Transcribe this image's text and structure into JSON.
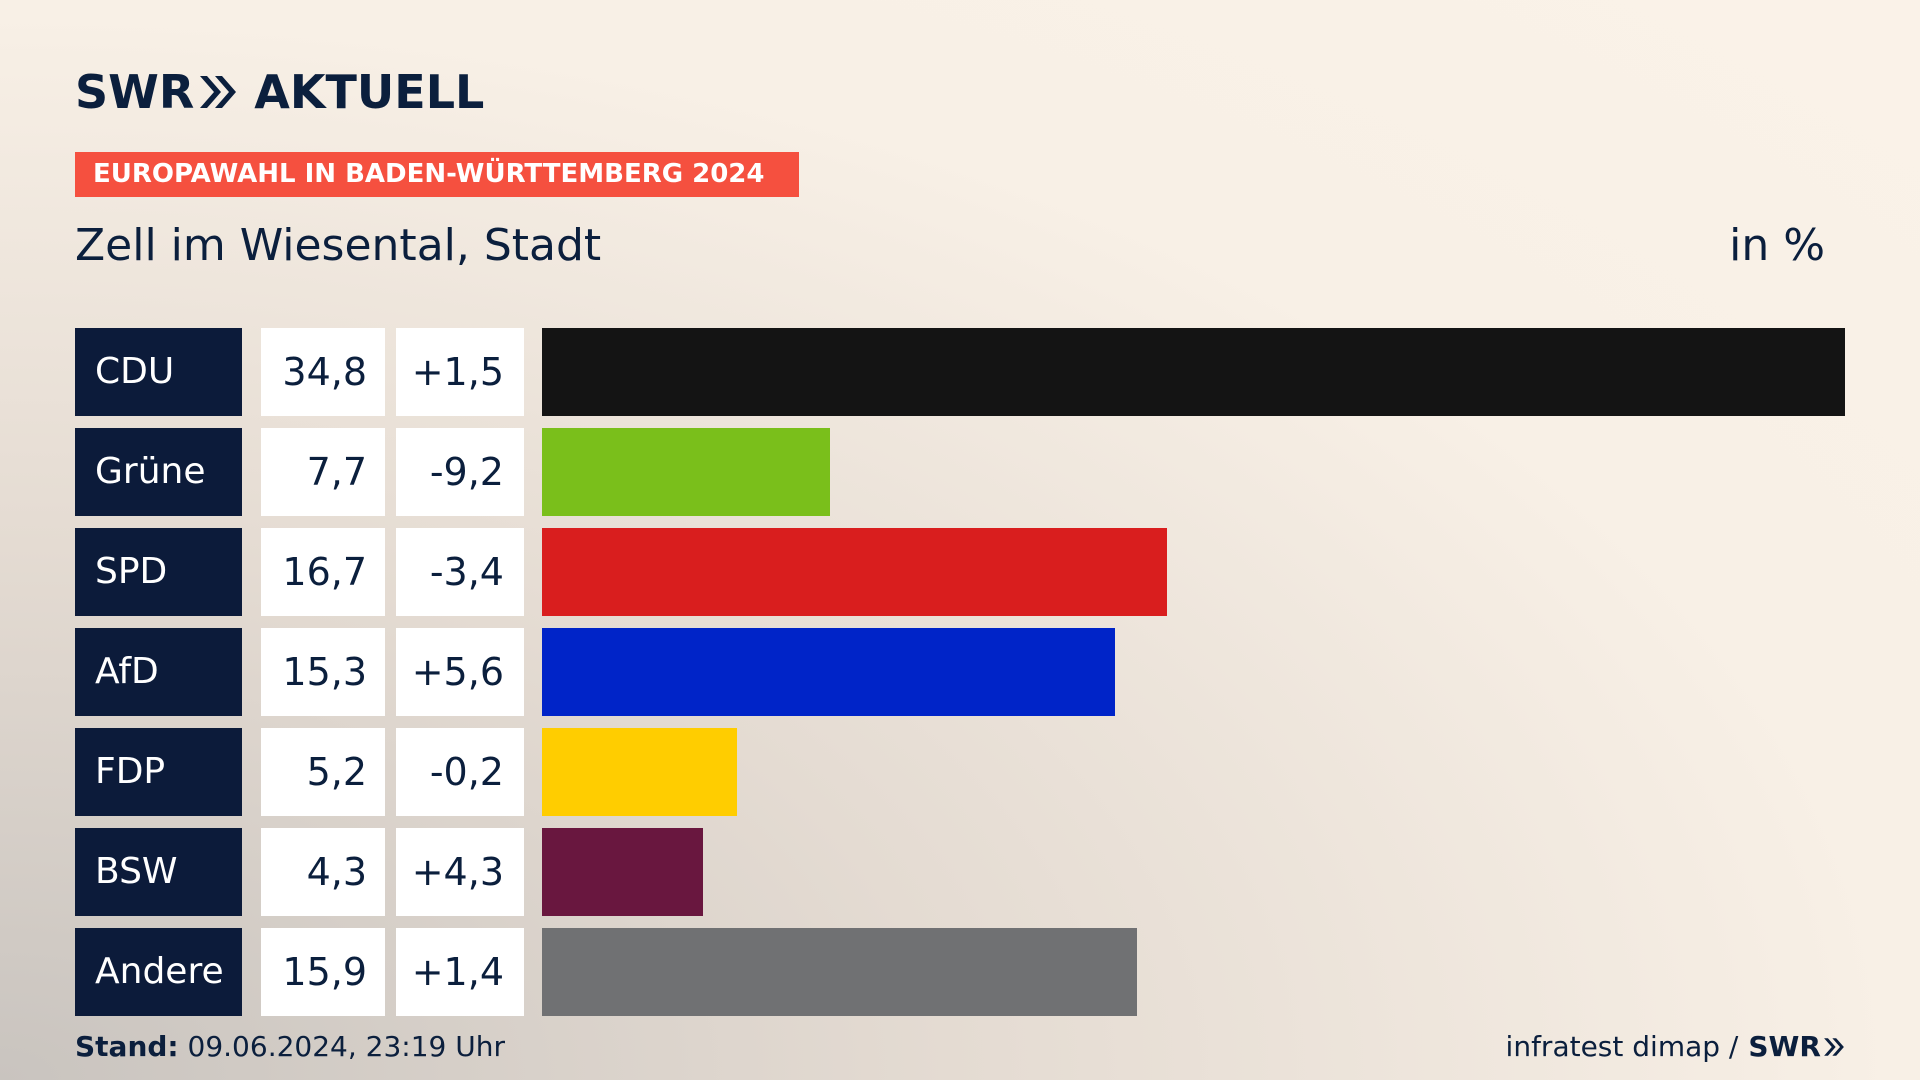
{
  "header": {
    "logo_swr": "SWR",
    "logo_text": "AKTUELL",
    "banner": "EUROPAWAHL IN BADEN-WÜRTTEMBERG 2024",
    "subtitle": "Zell im Wiesental, Stadt",
    "unit": "in %"
  },
  "chart_data": {
    "type": "bar",
    "orientation": "horizontal",
    "categories": [
      "CDU",
      "Grüne",
      "SPD",
      "AfD",
      "FDP",
      "BSW",
      "Andere"
    ],
    "values": [
      34.8,
      7.7,
      16.7,
      15.3,
      5.2,
      4.3,
      15.9
    ],
    "value_labels": [
      "34,8",
      "7,7",
      "16,7",
      "15,3",
      "5,2",
      "4,3",
      "15,9"
    ],
    "diff_labels": [
      "+1,5",
      "-9,2",
      "-3,4",
      "+5,6",
      "-0,2",
      "+4,3",
      "+1,4"
    ],
    "colors": [
      "#141414",
      "#7abf1b",
      "#d91e1e",
      "#0024c8",
      "#ffcd00",
      "#69173f",
      "#707173"
    ],
    "title": "Zell im Wiesental, Stadt",
    "ylabel": "in %",
    "xlim": [
      0,
      34.8
    ],
    "grid": false,
    "legend": "none"
  },
  "footer": {
    "stand_label": "Stand:",
    "stand_value": "09.06.2024, 23:19 Uhr",
    "source": "infratest dimap /",
    "source_brand": "SWR"
  }
}
